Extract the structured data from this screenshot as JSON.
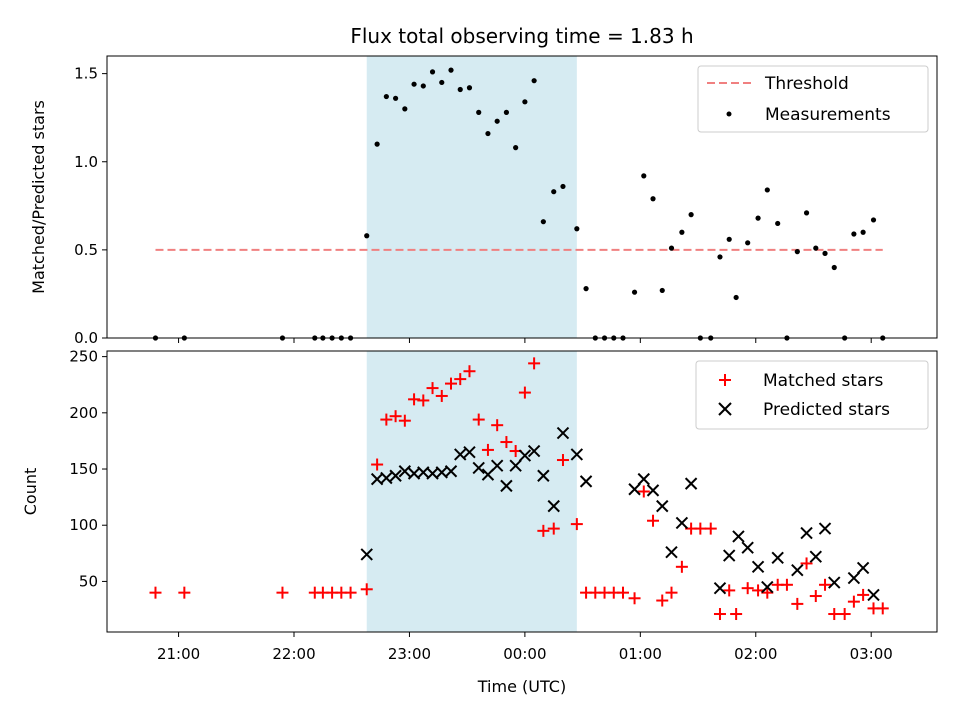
{
  "figure": {
    "title": "Flux total observing time = 1.83 h",
    "colors": {
      "threshold": "#f08080",
      "band": "#add8e6",
      "matched": "#ff0000",
      "predicted": "#000000",
      "measure": "#000000"
    }
  },
  "chart_data": [
    {
      "type": "scatter",
      "ylabel": "Matched/Predicted stars",
      "ylim": [
        0,
        1.6
      ],
      "yticks": [
        0,
        0.5,
        1.0,
        1.5
      ],
      "ytick_labels": [
        "0.0",
        "0.5",
        "1.0",
        "1.5"
      ],
      "xlim": [
        20.38,
        27.57
      ],
      "band": [
        22.63,
        24.45
      ],
      "legend_position": "top-right",
      "threshold": {
        "name": "Threshold",
        "y": 0.5,
        "x": [
          20.8,
          27.1
        ]
      },
      "series": [
        {
          "name": "Measurements",
          "points": [
            [
              20.8,
              0
            ],
            [
              21.05,
              0
            ],
            [
              21.9,
              0
            ],
            [
              22.18,
              0
            ],
            [
              22.25,
              0
            ],
            [
              22.33,
              0
            ],
            [
              22.41,
              0
            ],
            [
              22.49,
              0
            ],
            [
              22.63,
              0.58
            ],
            [
              22.72,
              1.1
            ],
            [
              22.8,
              1.37
            ],
            [
              22.88,
              1.36
            ],
            [
              22.96,
              1.3
            ],
            [
              23.04,
              1.44
            ],
            [
              23.12,
              1.43
            ],
            [
              23.2,
              1.51
            ],
            [
              23.28,
              1.45
            ],
            [
              23.36,
              1.52
            ],
            [
              23.44,
              1.41
            ],
            [
              23.52,
              1.42
            ],
            [
              23.6,
              1.28
            ],
            [
              23.68,
              1.16
            ],
            [
              23.76,
              1.23
            ],
            [
              23.84,
              1.28
            ],
            [
              23.92,
              1.08
            ],
            [
              24.0,
              1.34
            ],
            [
              24.08,
              1.46
            ],
            [
              24.16,
              0.66
            ],
            [
              24.25,
              0.83
            ],
            [
              24.33,
              0.86
            ],
            [
              24.45,
              0.62
            ],
            [
              24.53,
              0.28
            ],
            [
              24.61,
              0
            ],
            [
              24.69,
              0
            ],
            [
              24.77,
              0
            ],
            [
              24.85,
              0
            ],
            [
              24.95,
              0.26
            ],
            [
              25.03,
              0.92
            ],
            [
              25.11,
              0.79
            ],
            [
              25.19,
              0.27
            ],
            [
              25.27,
              0.51
            ],
            [
              25.36,
              0.6
            ],
            [
              25.44,
              0.7
            ],
            [
              25.52,
              0
            ],
            [
              25.61,
              0
            ],
            [
              25.69,
              0.46
            ],
            [
              25.77,
              0.56
            ],
            [
              25.83,
              0.23
            ],
            [
              25.93,
              0.54
            ],
            [
              26.02,
              0.68
            ],
            [
              26.1,
              0.84
            ],
            [
              26.19,
              0.65
            ],
            [
              26.27,
              0
            ],
            [
              26.36,
              0.49
            ],
            [
              26.44,
              0.71
            ],
            [
              26.52,
              0.51
            ],
            [
              26.6,
              0.48
            ],
            [
              26.68,
              0.4
            ],
            [
              26.77,
              0
            ],
            [
              26.85,
              0.59
            ],
            [
              26.93,
              0.6
            ],
            [
              27.02,
              0.67
            ],
            [
              27.1,
              0
            ]
          ]
        }
      ]
    },
    {
      "type": "scatter",
      "ylabel": "Count",
      "xlabel": "Time (UTC)",
      "ylim": [
        5,
        255
      ],
      "yticks": [
        50,
        100,
        150,
        200,
        250
      ],
      "ytick_labels": [
        "50",
        "100",
        "150",
        "200",
        "250"
      ],
      "xlim": [
        20.38,
        27.57
      ],
      "xticks": [
        21,
        22,
        23,
        24,
        25,
        26,
        27
      ],
      "xtick_labels": [
        "21:00",
        "22:00",
        "23:00",
        "00:00",
        "01:00",
        "02:00",
        "03:00"
      ],
      "band": [
        22.63,
        24.45
      ],
      "legend_position": "top-right",
      "series": [
        {
          "name": "Matched stars",
          "marker": "plus",
          "points": [
            [
              20.8,
              40
            ],
            [
              21.05,
              40
            ],
            [
              21.9,
              40
            ],
            [
              22.18,
              40
            ],
            [
              22.25,
              40
            ],
            [
              22.33,
              40
            ],
            [
              22.41,
              40
            ],
            [
              22.49,
              40
            ],
            [
              22.63,
              43
            ],
            [
              22.72,
              154
            ],
            [
              22.8,
              194
            ],
            [
              22.88,
              197
            ],
            [
              22.96,
              193
            ],
            [
              23.04,
              212
            ],
            [
              23.12,
              211
            ],
            [
              23.2,
              222
            ],
            [
              23.28,
              215
            ],
            [
              23.36,
              226
            ],
            [
              23.44,
              230
            ],
            [
              23.52,
              237
            ],
            [
              23.6,
              194
            ],
            [
              23.68,
              167
            ],
            [
              23.76,
              189
            ],
            [
              23.84,
              174
            ],
            [
              23.92,
              166
            ],
            [
              24.0,
              218
            ],
            [
              24.08,
              244
            ],
            [
              24.16,
              95
            ],
            [
              24.25,
              97
            ],
            [
              24.33,
              158
            ],
            [
              24.45,
              101
            ],
            [
              24.53,
              40
            ],
            [
              24.61,
              40
            ],
            [
              24.69,
              40
            ],
            [
              24.77,
              40
            ],
            [
              24.85,
              40
            ],
            [
              24.95,
              35
            ],
            [
              25.03,
              130
            ],
            [
              25.11,
              104
            ],
            [
              25.19,
              33
            ],
            [
              25.27,
              40
            ],
            [
              25.36,
              63
            ],
            [
              25.44,
              97
            ],
            [
              25.52,
              97
            ],
            [
              25.61,
              97
            ],
            [
              25.69,
              21
            ],
            [
              25.77,
              42
            ],
            [
              25.83,
              21
            ],
            [
              25.93,
              44
            ],
            [
              26.02,
              42
            ],
            [
              26.1,
              40
            ],
            [
              26.19,
              47
            ],
            [
              26.27,
              47
            ],
            [
              26.36,
              30
            ],
            [
              26.44,
              66
            ],
            [
              26.52,
              37
            ],
            [
              26.6,
              47
            ],
            [
              26.68,
              21
            ],
            [
              26.77,
              21
            ],
            [
              26.85,
              32
            ],
            [
              26.93,
              38
            ],
            [
              27.02,
              26
            ],
            [
              27.1,
              26
            ]
          ]
        },
        {
          "name": "Predicted stars",
          "marker": "x",
          "points": [
            [
              22.63,
              74
            ],
            [
              22.72,
              141
            ],
            [
              22.8,
              142
            ],
            [
              22.88,
              144
            ],
            [
              22.96,
              148
            ],
            [
              23.04,
              146
            ],
            [
              23.12,
              147
            ],
            [
              23.2,
              146
            ],
            [
              23.28,
              147
            ],
            [
              23.36,
              148
            ],
            [
              23.44,
              163
            ],
            [
              23.52,
              165
            ],
            [
              23.6,
              151
            ],
            [
              23.68,
              145
            ],
            [
              23.76,
              153
            ],
            [
              23.84,
              135
            ],
            [
              23.92,
              153
            ],
            [
              24.0,
              162
            ],
            [
              24.08,
              166
            ],
            [
              24.16,
              144
            ],
            [
              24.25,
              117
            ],
            [
              24.33,
              182
            ],
            [
              24.45,
              163
            ],
            [
              24.53,
              139
            ],
            [
              24.95,
              132
            ],
            [
              25.03,
              141
            ],
            [
              25.11,
              131
            ],
            [
              25.19,
              117
            ],
            [
              25.27,
              76
            ],
            [
              25.36,
              102
            ],
            [
              25.44,
              137
            ],
            [
              25.69,
              44
            ],
            [
              25.77,
              73
            ],
            [
              25.85,
              90
            ],
            [
              25.93,
              80
            ],
            [
              26.02,
              63
            ],
            [
              26.1,
              45
            ],
            [
              26.19,
              71
            ],
            [
              26.36,
              60
            ],
            [
              26.44,
              93
            ],
            [
              26.52,
              72
            ],
            [
              26.6,
              97
            ],
            [
              26.68,
              49
            ],
            [
              26.85,
              53
            ],
            [
              26.93,
              62
            ],
            [
              27.02,
              38
            ]
          ]
        }
      ]
    }
  ]
}
